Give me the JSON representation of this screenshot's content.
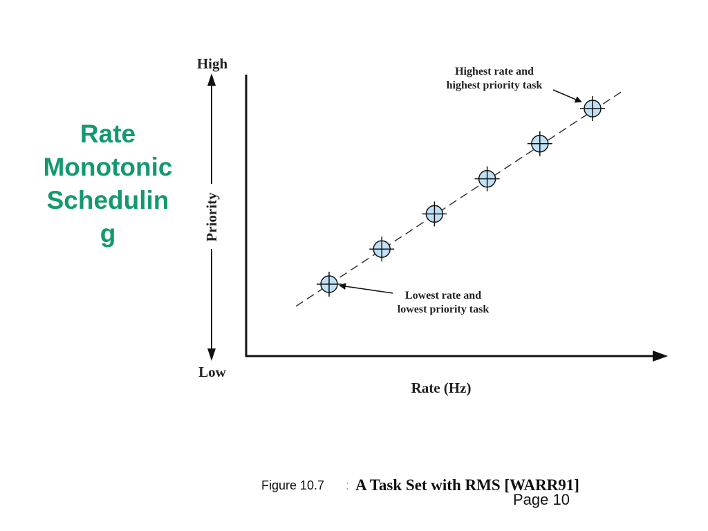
{
  "slide": {
    "title_lines": [
      "Rate",
      "Monotonic",
      "Schedulin",
      "g"
    ]
  },
  "diagram": {
    "y_axis_label": "Priority",
    "y_high_label": "High",
    "y_low_label": "Low",
    "x_axis_label": "Rate (Hz)",
    "annotation_top": [
      "Highest rate and",
      "highest priority task"
    ],
    "annotation_bottom": [
      "Lowest rate and",
      "lowest priority task"
    ],
    "marker_fill_color": "#bfe0f5",
    "task_count": 6
  },
  "caption": {
    "figure_label": "Figure 10.7",
    "separator": ":",
    "title": "A Task Set with RMS [WARR91]",
    "page_label": "Page 10"
  }
}
